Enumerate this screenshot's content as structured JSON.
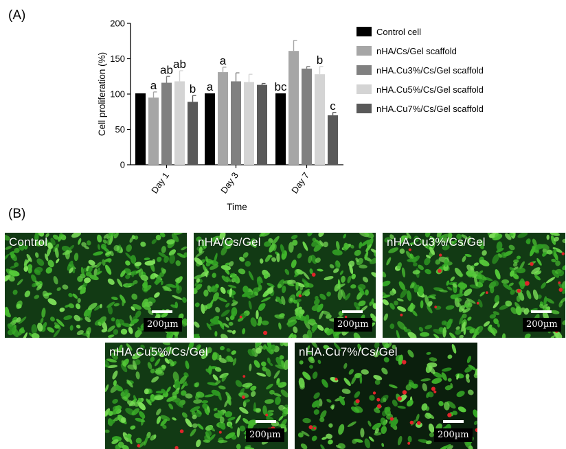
{
  "panel_a_label": "(A)",
  "panel_b_label": "(B)",
  "chart_data": {
    "type": "bar",
    "xlabel": "Time",
    "ylabel": "Cell proliferation (%)",
    "ylim": [
      0,
      200
    ],
    "yticks": [
      "0",
      "50",
      "100",
      "150",
      "200"
    ],
    "categories": [
      "Day 1",
      "Day 3",
      "Day 7"
    ],
    "legend_position": "right",
    "series": [
      {
        "name": "Control cell",
        "color": "#000000",
        "values": [
          101,
          101,
          101
        ],
        "errors": [
          0,
          0,
          0
        ],
        "labels": [
          "",
          "a",
          "bc"
        ]
      },
      {
        "name": "nHA/Cs/Gel scaffold",
        "color": "#a6a6a6",
        "values": [
          95,
          131,
          161
        ],
        "errors": [
          8,
          7,
          15
        ],
        "labels": [
          "a",
          "a",
          ""
        ]
      },
      {
        "name": "nHA.Cu3%/Cs/Gel scaffold",
        "color": "#808080",
        "values": [
          116,
          118,
          136
        ],
        "errors": [
          9,
          12,
          3
        ],
        "labels": [
          "ab",
          "",
          ""
        ]
      },
      {
        "name": "nHA.Cu5%/Cs/Gel scaffold",
        "color": "#d4d4d4",
        "values": [
          118,
          117,
          128
        ],
        "errors": [
          15,
          11,
          11
        ],
        "labels": [
          "ab",
          "",
          "b"
        ]
      },
      {
        "name": "nHA.Cu7%/Cs/Gel scaffold",
        "color": "#595959",
        "values": [
          89,
          113,
          70
        ],
        "errors": [
          9,
          2,
          4
        ],
        "labels": [
          "b",
          "",
          "c"
        ]
      }
    ]
  },
  "micrographs": [
    {
      "label": "Control",
      "scale": "200µm",
      "red_count": 0
    },
    {
      "label": "nHA/Cs/Gel",
      "scale": "200µm",
      "red_count": 6
    },
    {
      "label": "nHA.Cu3%/Cs/Gel",
      "scale": "200µm",
      "red_count": 14
    },
    {
      "label": "nHA.Cu5%/Cs/Gel",
      "scale": "200µm",
      "red_count": 9
    },
    {
      "label": "nHA.Cu7%/Cs/Gel",
      "scale": "200µm",
      "red_count": 18
    }
  ]
}
